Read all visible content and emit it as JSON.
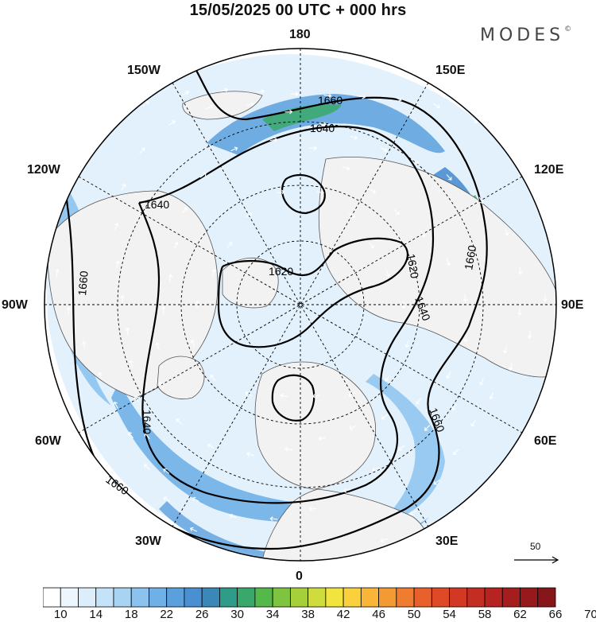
{
  "header": {
    "title": "15/05/2025  00 UTC  + 000 hrs",
    "brand": "MODES"
  },
  "map": {
    "projection": "north-polar-stereographic",
    "longitude_labels": [
      "180",
      "150E",
      "120E",
      "90E",
      "60E",
      "30E",
      "0",
      "30W",
      "60W",
      "90W",
      "120W",
      "150W"
    ],
    "contour_labels": [
      "1660",
      "1640",
      "1640",
      "1620",
      "1620",
      "1660",
      "1640",
      "1660",
      "1640",
      "1660",
      "1640",
      "1660"
    ],
    "colors": {
      "land": "#f2f2f2",
      "sea": "#ffffff",
      "coastline": "#555555",
      "contour": "#000000",
      "wind_arrow": "#ffffff"
    }
  },
  "wind_reference": {
    "value": "50"
  },
  "colorbar": {
    "ticks": [
      "10",
      "14",
      "18",
      "22",
      "26",
      "30",
      "34",
      "38",
      "42",
      "46",
      "50",
      "54",
      "58",
      "62",
      "66",
      "70"
    ],
    "colors": [
      "#ffffff",
      "#eef6fd",
      "#dcedfb",
      "#c4e2f8",
      "#a9d3f3",
      "#8cc3ee",
      "#6fb0e6",
      "#5aa0dd",
      "#4a8fd2",
      "#3b88b8",
      "#2f9c8a",
      "#3aa86a",
      "#55b84a",
      "#7ec43e",
      "#a6d03a",
      "#cfdc3d",
      "#f2e43e",
      "#f9d13c",
      "#f8b538",
      "#f49a34",
      "#ef7c2f",
      "#e8602b",
      "#de4a27",
      "#d23824",
      "#c42d22",
      "#b52420",
      "#a61d1e",
      "#961a1c",
      "#87161a"
    ]
  }
}
